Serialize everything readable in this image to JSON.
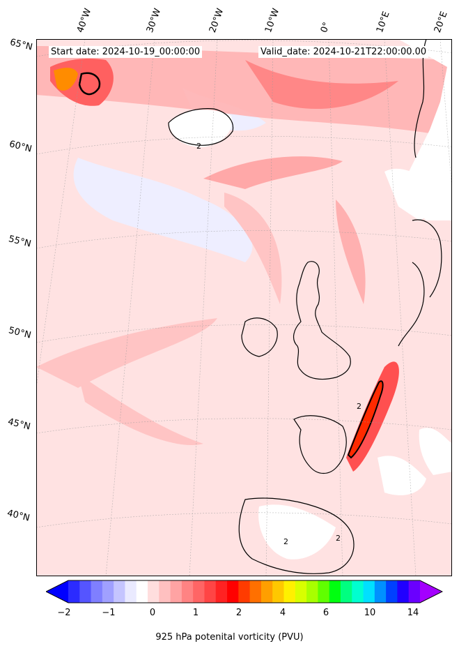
{
  "header": {
    "start_date": "Start date: 2024-10-19_00:00:00",
    "valid_date": "Valid_date: 2024-10-21T22:00:00.00"
  },
  "longitude_labels": [
    "40°W",
    "30°W",
    "20°W",
    "10°W",
    "0°",
    "10°E",
    "20°E"
  ],
  "latitude_labels": [
    "65°N",
    "60°N",
    "55°N",
    "50°N",
    "45°N",
    "40°N"
  ],
  "colorbar": {
    "title": "925 hPa potenital vorticity (PVU)",
    "tick_labels": [
      "−2",
      "−1",
      "0",
      "1",
      "2",
      "4",
      "6",
      "10",
      "14"
    ],
    "colors": [
      "#0000ff",
      "#2b2bff",
      "#5555ff",
      "#7f7fff",
      "#a0a0ff",
      "#c5c5ff",
      "#eaeaff",
      "#ffffff",
      "#ffdede",
      "#ffc0c0",
      "#ffa3a3",
      "#ff8383",
      "#ff6565",
      "#ff4545",
      "#ff2222",
      "#ff0000",
      "#ff3b00",
      "#ff7000",
      "#ff9f00",
      "#ffc800",
      "#fff000",
      "#d8ff00",
      "#a8ff00",
      "#60ff00",
      "#00ff10",
      "#00ff80",
      "#00ffd0",
      "#00e0ff",
      "#0090ff",
      "#0040ff",
      "#2000ff",
      "#6a00ff",
      "#a400ff"
    ]
  },
  "map": {
    "background_color": "#ffe3e3",
    "contour_label": "2"
  }
}
